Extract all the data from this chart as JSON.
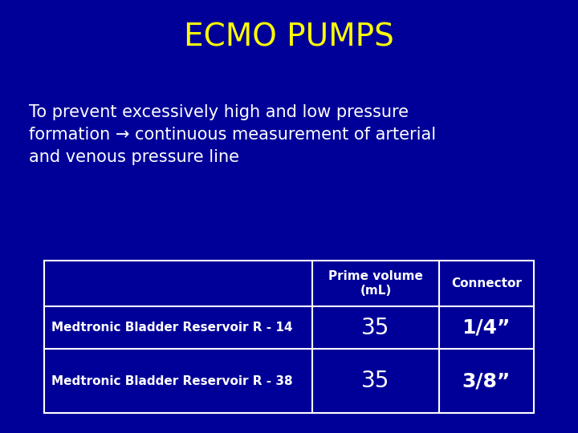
{
  "title": "ECMO PUMPS",
  "title_color": "#FFFF00",
  "title_fontsize": 28,
  "title_bold": false,
  "body_text": "To prevent excessively high and low pressure\nformation → continuous measurement of arterial\nand venous pressure line",
  "body_color": "#FFFFFF",
  "body_fontsize": 15,
  "background_color": "#000099",
  "table_col_labels": [
    "",
    "Prime volume\n(mL)",
    "Connector"
  ],
  "table_rows": [
    [
      "Medtronic Bladder Reservoir R - 14",
      "35",
      "1/4”"
    ],
    [
      "Medtronic Bladder Reservoir R - 38",
      "35",
      "3/8”"
    ]
  ],
  "table_header_fontsize": 11,
  "table_row_fontsize": 11,
  "table_border_color": "#FFFFFF",
  "table_text_color": "#FFFFFF",
  "table_value_fontsize": 20,
  "table_connector_fontsize": 18
}
